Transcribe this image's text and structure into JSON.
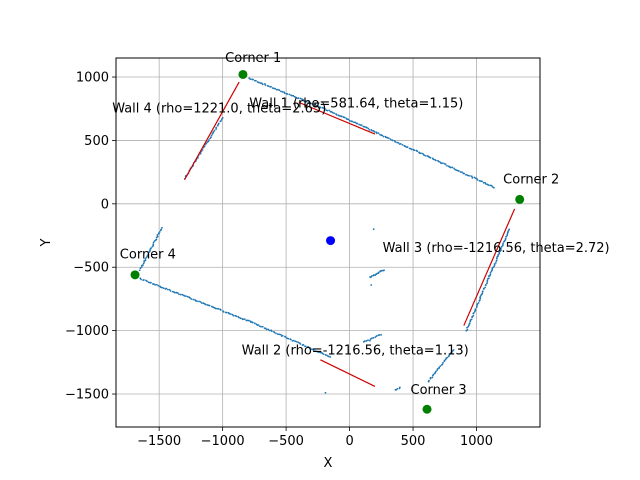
{
  "chart_data": {
    "type": "scatter",
    "title": "",
    "xlabel": "X",
    "ylabel": "Y",
    "xlim": [
      -1840,
      1500
    ],
    "ylim": [
      -1760,
      1150
    ],
    "xticks": [
      -1500,
      -1000,
      -500,
      0,
      500,
      1000
    ],
    "xtick_labels": [
      "−1500",
      "−1000",
      "−500",
      "0",
      "500",
      "1000"
    ],
    "yticks": [
      -1500,
      -1000,
      -500,
      0,
      500,
      1000
    ],
    "ytick_labels": [
      "−1500",
      "−1000",
      "−500",
      "0",
      "500",
      "1000"
    ],
    "grid": true,
    "legend": "none",
    "colors": {
      "points": "#1f77b4",
      "walls": "#d00000",
      "corners": "#008000",
      "robot": "#0000ff",
      "grid": "#b0b0b0"
    },
    "point_segments": [
      {
        "from": [
          -790,
          990
        ],
        "to": [
          -150,
          730
        ],
        "n": 60
      },
      {
        "from": [
          -150,
          730
        ],
        "to": [
          300,
          520
        ],
        "n": 45
      },
      {
        "from": [
          300,
          520
        ],
        "to": [
          1140,
          130
        ],
        "n": 80
      },
      {
        "from": [
          1260,
          -200
        ],
        "to": [
          920,
          -1000
        ],
        "n": 80
      },
      {
        "from": [
          820,
          -1150
        ],
        "to": [
          620,
          -1400
        ],
        "n": 30
      },
      {
        "from": [
          -1650,
          -590
        ],
        "to": [
          -780,
          -930
        ],
        "n": 80
      },
      {
        "from": [
          -780,
          -930
        ],
        "to": [
          -150,
          -1210
        ],
        "n": 60
      },
      {
        "from": [
          -1650,
          -520
        ],
        "to": [
          -1480,
          -190
        ],
        "n": 35
      },
      {
        "from": [
          -1300,
          200
        ],
        "to": [
          -1000,
          680
        ],
        "n": 45
      },
      {
        "from": [
          160,
          -580
        ],
        "to": [
          270,
          -520
        ],
        "n": 15
      },
      {
        "from": [
          110,
          -1090
        ],
        "to": [
          250,
          -1030
        ],
        "n": 12
      },
      {
        "from": [
          360,
          -1470
        ],
        "to": [
          400,
          -1450
        ],
        "n": 5
      }
    ],
    "isolated_points": [
      [
        -190,
        -1490
      ],
      [
        190,
        -200
      ],
      [
        170,
        -640
      ],
      [
        160,
        -1080
      ]
    ],
    "wall_lines": [
      {
        "name": "Wall 1",
        "label": "Wall 1 (rho=581.64, theta=1.15)",
        "x": [
          -400,
          200
        ],
        "y": [
          800,
          550
        ],
        "label_at": [
          -790,
          760
        ]
      },
      {
        "name": "Wall 2",
        "label": "Wall 2 (rho=-1216.56, theta=1.13)",
        "x": [
          -230,
          200
        ],
        "y": [
          -1230,
          -1440
        ],
        "label_at": [
          -850,
          -1190
        ]
      },
      {
        "name": "Wall 3",
        "label": "Wall 3 (rho=-1216.56, theta=2.72)",
        "x": [
          900,
          1300
        ],
        "y": [
          -960,
          -40
        ],
        "label_at": [
          260,
          -380
        ]
      },
      {
        "name": "Wall 4",
        "label": "Wall 4 (rho=1221.0, theta=2.65)",
        "x": [
          -1300,
          -870
        ],
        "y": [
          190,
          960
        ],
        "label_at": [
          -1870,
          720
        ]
      }
    ],
    "corners": [
      {
        "label": "Corner 1",
        "x": -840,
        "y": 1020,
        "label_at": [
          -980,
          1120
        ]
      },
      {
        "label": "Corner 2",
        "x": 1340,
        "y": 35,
        "label_at": [
          1210,
          160
        ]
      },
      {
        "label": "Corner 3",
        "x": 610,
        "y": -1620,
        "label_at": [
          480,
          -1500
        ]
      },
      {
        "label": "Corner 4",
        "x": -1690,
        "y": -560,
        "label_at": [
          -1810,
          -430
        ]
      }
    ],
    "robot": {
      "x": -150,
      "y": -290
    }
  }
}
